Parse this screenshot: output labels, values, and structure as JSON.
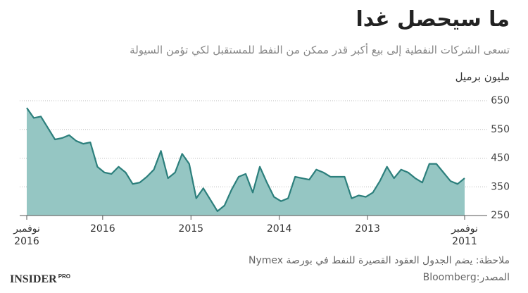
{
  "chart_data": {
    "type": "area",
    "title": "ما سيحصل غدا",
    "subtitle": "تسعى الشركات النفطية إلى بيع أكبر قدر ممكن من النفط للمستقبل لكي تؤمن السيولة",
    "y_label": "مليون برميل",
    "note": "ملاحظة: يضم الجدول العقود القصيرة للنفط في بورصة Nymex",
    "source": "المصدر:Bloomberg",
    "logo": "INSIDER",
    "logo_suffix": "PRO",
    "line_color": "#2c7f7c",
    "fill_color": "#95c6c3",
    "grid": true,
    "xlim": [
      2016.86,
      2011.9
    ],
    "xticks": [
      {
        "value": 2016.86,
        "label": "نوفمبر\n2016"
      },
      2016,
      2015,
      2014,
      2013,
      {
        "value": 2011.9,
        "label": "نوفمبر\n2011"
      }
    ],
    "ylim": [
      250,
      650
    ],
    "yticks": [
      250,
      350,
      450,
      550,
      650
    ],
    "x": [
      2016.86,
      2016.78,
      2016.7,
      2016.62,
      2016.54,
      2016.46,
      2016.38,
      2016.3,
      2016.22,
      2016.14,
      2016.06,
      2015.98,
      2015.9,
      2015.82,
      2015.74,
      2015.66,
      2015.58,
      2015.5,
      2015.42,
      2015.34,
      2015.26,
      2015.18,
      2015.1,
      2015.02,
      2014.94,
      2014.86,
      2014.78,
      2014.7,
      2014.62,
      2014.54,
      2014.46,
      2014.38,
      2014.3,
      2014.22,
      2014.14,
      2014.06,
      2013.98,
      2013.9,
      2013.82,
      2013.74,
      2013.66,
      2013.58,
      2013.5,
      2013.42,
      2013.34,
      2013.26,
      2013.18,
      2013.1,
      2013.02,
      2012.94,
      2012.86,
      2012.78,
      2012.7,
      2012.62,
      2012.54,
      2012.46,
      2012.38,
      2012.3,
      2012.22,
      2012.14,
      2012.06,
      2011.98,
      2011.9
    ],
    "values": [
      625,
      590,
      595,
      555,
      515,
      520,
      530,
      510,
      500,
      505,
      420,
      400,
      395,
      420,
      400,
      360,
      365,
      385,
      410,
      475,
      380,
      400,
      465,
      430,
      310,
      345,
      305,
      265,
      285,
      340,
      385,
      395,
      330,
      420,
      365,
      315,
      300,
      310,
      385,
      380,
      375,
      410,
      400,
      385,
      385,
      385,
      310,
      320,
      315,
      330,
      370,
      420,
      380,
      410,
      400,
      380,
      365,
      430,
      430,
      400,
      370,
      360,
      380
    ]
  }
}
